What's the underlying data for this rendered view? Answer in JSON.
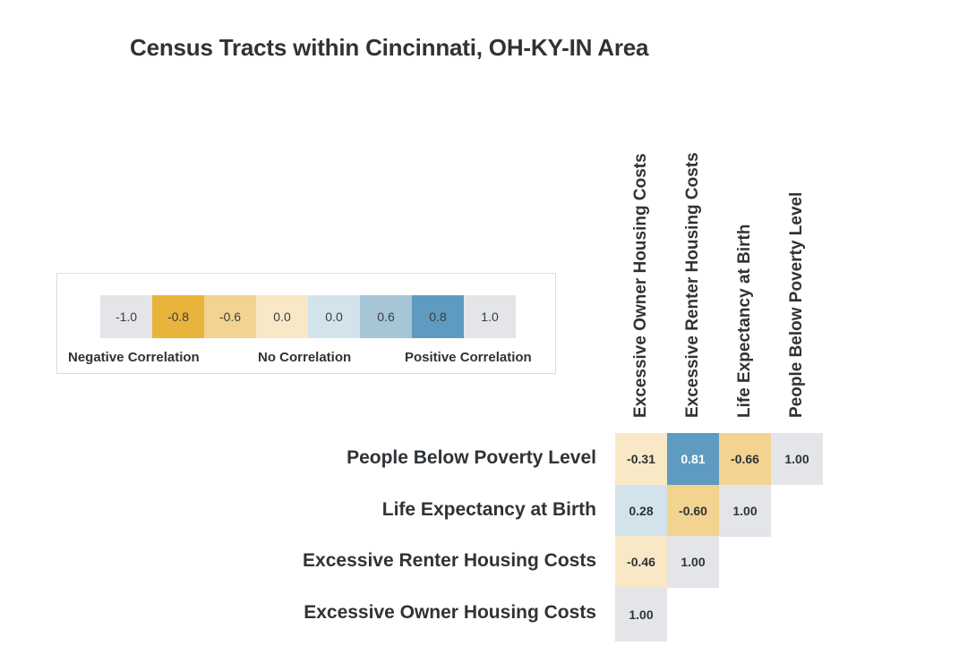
{
  "chart_data": {
    "type": "heatmap",
    "title": "Census Tracts within Cincinnati, OH-KY-IN Area",
    "columns": [
      "Excessive Owner Housing Costs",
      "Excessive Renter Housing Costs",
      "Life Expectancy at Birth",
      "People Below Poverty Level"
    ],
    "rows": [
      "People Below Poverty Level",
      "Life Expectancy at Birth",
      "Excessive Renter Housing Costs",
      "Excessive Owner Housing Costs"
    ],
    "values": [
      [
        -0.31,
        0.81,
        -0.66,
        1.0
      ],
      [
        0.28,
        -0.6,
        1.0,
        null
      ],
      [
        -0.46,
        1.0,
        null,
        null
      ],
      [
        1.0,
        null,
        null,
        null
      ]
    ],
    "value_labels": [
      [
        "-0.31",
        "0.81",
        "-0.66",
        "1.00"
      ],
      [
        "0.28",
        "-0.60",
        "1.00",
        ""
      ],
      [
        "-0.46",
        "1.00",
        "",
        ""
      ],
      [
        "1.00",
        "",
        "",
        ""
      ]
    ],
    "legend": {
      "bins": [
        {
          "label": "-1.0",
          "color": "#e4e5e8"
        },
        {
          "label": "-0.8",
          "color": "#e8b43c"
        },
        {
          "label": "-0.6",
          "color": "#f2d390"
        },
        {
          "label": "0.0",
          "color": "#f8e8c6"
        },
        {
          "label": "0.0",
          "color": "#d3e3ec"
        },
        {
          "label": "0.6",
          "color": "#a6c5d7"
        },
        {
          "label": "0.8",
          "color": "#5f9bc0"
        },
        {
          "label": "1.0",
          "color": "#e4e5e8"
        }
      ],
      "labels": [
        "Negative Correlation",
        "No Correlation",
        "Positive Correlation"
      ]
    },
    "colors": {
      "diagonal": "#e4e5e8",
      "strong_negative": "#e8b43c",
      "moderate_negative": "#f2d390",
      "weak_negative": "#f8e8c6",
      "weak_positive": "#d3e3ec",
      "moderate_positive": "#a6c5d7",
      "strong_positive": "#5f9bc0"
    }
  }
}
